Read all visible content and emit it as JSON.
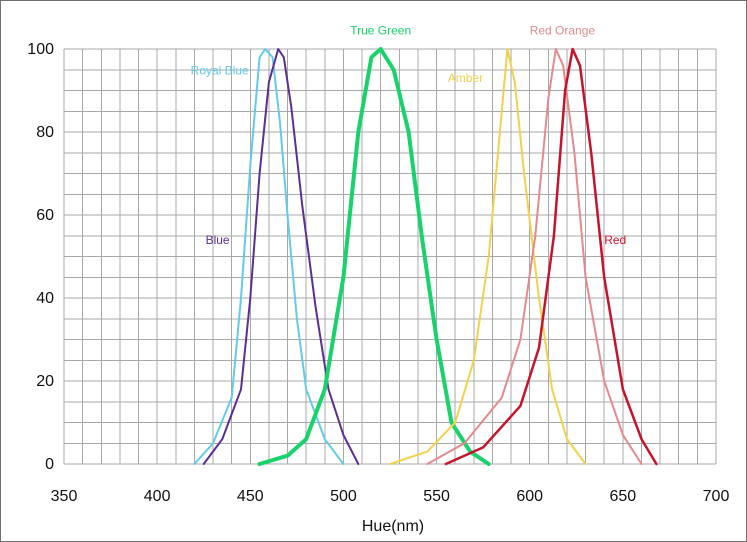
{
  "chart_data": {
    "type": "line",
    "title": "",
    "xlabel": "Hue(nm)",
    "ylabel": "",
    "xlim": [
      350,
      700
    ],
    "ylim": [
      0,
      100
    ],
    "grid": true,
    "x_ticks": [
      "350",
      "400",
      "450",
      "500",
      "550",
      "600",
      "650",
      "700"
    ],
    "y_ticks": [
      "0",
      "20",
      "40",
      "60",
      "80",
      "100"
    ],
    "series": [
      {
        "name": "Royal Blue",
        "color": "#63cbe8",
        "x": [
          420,
          430,
          440,
          445,
          450,
          455,
          458,
          462,
          466,
          470,
          475,
          480,
          490,
          500
        ],
        "y": [
          0,
          5,
          16,
          40,
          72,
          98,
          100,
          98,
          82,
          60,
          35,
          18,
          6,
          0
        ]
      },
      {
        "name": "Blue",
        "color": "#5a2f91",
        "x": [
          425,
          435,
          445,
          450,
          455,
          460,
          465,
          468,
          472,
          478,
          485,
          492,
          500,
          508
        ],
        "y": [
          0,
          6,
          18,
          40,
          70,
          92,
          100,
          98,
          86,
          62,
          38,
          18,
          7,
          0
        ]
      },
      {
        "name": "True Green",
        "color": "#18d36b",
        "x": [
          455,
          470,
          480,
          490,
          500,
          508,
          515,
          520,
          527,
          535,
          542,
          550,
          558,
          568,
          578
        ],
        "y": [
          0,
          2,
          6,
          18,
          45,
          80,
          98,
          100,
          95,
          80,
          55,
          30,
          10,
          3,
          0
        ]
      },
      {
        "name": "Amber",
        "color": "#f1d24a",
        "x": [
          525,
          545,
          560,
          570,
          578,
          584,
          588,
          592,
          597,
          605,
          612,
          620,
          630
        ],
        "y": [
          0,
          3,
          10,
          25,
          50,
          80,
          100,
          92,
          70,
          40,
          18,
          6,
          0
        ]
      },
      {
        "name": "Red Orange",
        "color": "#e38a8e",
        "x": [
          545,
          565,
          585,
          595,
          603,
          610,
          614,
          618,
          624,
          630,
          640,
          650,
          660
        ],
        "y": [
          0,
          5,
          16,
          30,
          55,
          88,
          100,
          96,
          75,
          45,
          20,
          7,
          0
        ]
      },
      {
        "name": "Red",
        "color": "#c6132c",
        "x": [
          555,
          575,
          595,
          605,
          613,
          619,
          623,
          627,
          633,
          640,
          650,
          660,
          668
        ],
        "y": [
          0,
          4,
          14,
          28,
          55,
          90,
          100,
          96,
          75,
          45,
          18,
          6,
          0
        ]
      }
    ]
  }
}
